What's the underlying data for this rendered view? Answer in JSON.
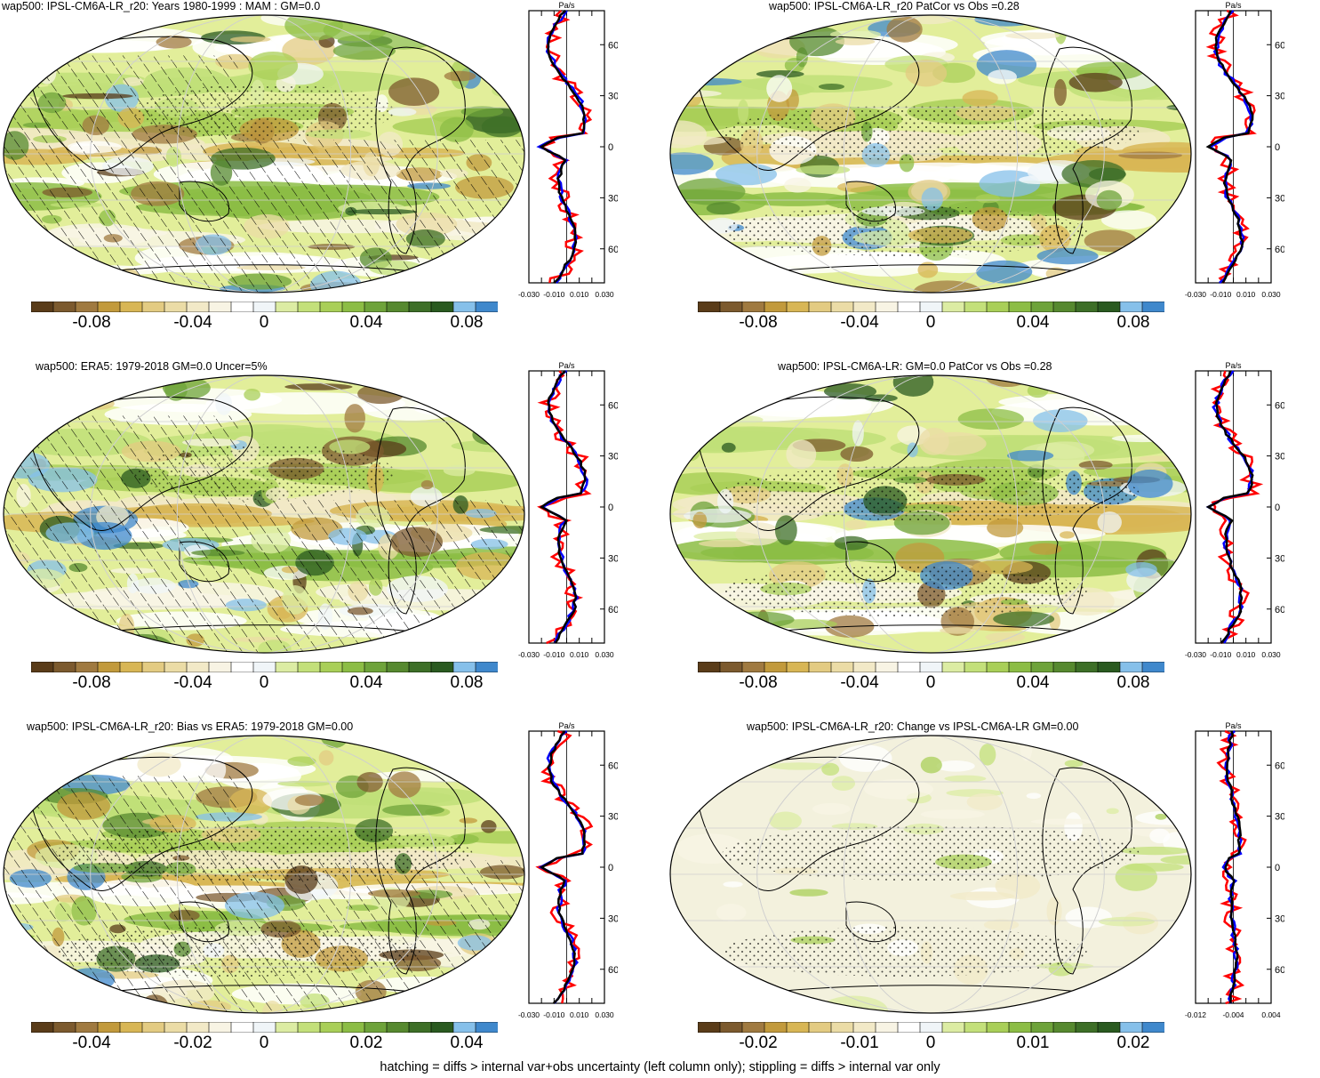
{
  "footer": "hatching = diffs > internal var+obs uncertainty (left column only); stippling = diffs > internal var only",
  "colors": {
    "scale": [
      "#5a3c19",
      "#7c5a2e",
      "#a07a40",
      "#c29a3c",
      "#d8b655",
      "#e3cb82",
      "#ebdca6",
      "#f2e9c7",
      "#f8f4e4",
      "#ffffff",
      "#f0f5f8",
      "#dceca3",
      "#c3e07a",
      "#a9cf58",
      "#8cbd45",
      "#6ea33a",
      "#56892f",
      "#3d6f27",
      "#2a5a20",
      "#86c0ea",
      "#3f88cc"
    ],
    "ocean_base": "#e2ee9a",
    "land_line": "#000000",
    "model_line": "#ff0000",
    "obs_line": "#0000ff",
    "ref_line": "#000000"
  },
  "panels": [
    {
      "title": "wap500: IPSL-CM6A-LR_r20: Years 1980-1999 : MAM : GM=0.0",
      "cbar_ticks": [
        "-0.08",
        "-0.04",
        "0",
        "0.04",
        "0.08"
      ],
      "hatched": true,
      "profile": {
        "unit": "Pa/s",
        "x_ticks": [
          "-0.030",
          "-0.010",
          "0.010",
          "0.030"
        ],
        "lat_ticks": [
          "60N",
          "30N",
          "0",
          "30S",
          "60S"
        ]
      }
    },
    {
      "title": "wap500: IPSL-CM6A-LR_r20 PatCor vs Obs =0.28",
      "cbar_ticks": [
        "-0.08",
        "-0.04",
        "0",
        "0.04",
        "0.08"
      ],
      "hatched": false,
      "profile": {
        "unit": "Pa/s",
        "x_ticks": [
          "-0.030",
          "-0.010",
          "0.010",
          "0.030"
        ],
        "lat_ticks": [
          "60N",
          "30N",
          "0",
          "30S",
          "60S"
        ]
      }
    },
    {
      "title": "wap500: ERA5: 1979-2018 GM=0.0 Uncer=5%",
      "cbar_ticks": [
        "-0.08",
        "-0.04",
        "0",
        "0.04",
        "0.08"
      ],
      "hatched": true,
      "profile": {
        "unit": "Pa/s",
        "x_ticks": [
          "-0.030",
          "-0.010",
          "0.010",
          "0.030"
        ],
        "lat_ticks": [
          "60N",
          "30N",
          "0",
          "30S",
          "60S"
        ]
      }
    },
    {
      "title": "wap500: IPSL-CM6A-LR: GM=0.0 PatCor vs Obs =0.28",
      "cbar_ticks": [
        "-0.08",
        "-0.04",
        "0",
        "0.04",
        "0.08"
      ],
      "hatched": false,
      "profile": {
        "unit": "Pa/s",
        "x_ticks": [
          "-0.030",
          "-0.010",
          "0.010",
          "0.030"
        ],
        "lat_ticks": [
          "60N",
          "30N",
          "0",
          "30S",
          "60S"
        ]
      }
    },
    {
      "title": "wap500: IPSL-CM6A-LR_r20: Bias vs ERA5: 1979-2018 GM=0.00",
      "cbar_ticks": [
        "-0.04",
        "-0.02",
        "0",
        "0.02",
        "0.04"
      ],
      "hatched": true,
      "profile": {
        "unit": "Pa/s",
        "x_ticks": [
          "-0.030",
          "-0.010",
          "0.010",
          "0.030"
        ],
        "lat_ticks": [
          "60N",
          "30N",
          "0",
          "30S",
          "60S"
        ]
      }
    },
    {
      "title": "wap500: IPSL-CM6A-LR_r20: Change vs IPSL-CM6A-LR GM=0.00",
      "cbar_ticks": [
        "-0.02",
        "-0.01",
        "0",
        "0.01",
        "0.02"
      ],
      "hatched": false,
      "profile": {
        "unit": "Pa/s",
        "x_ticks": [
          "-0.012",
          "-0.004",
          "0.004"
        ],
        "lat_ticks": [
          "60N",
          "30N",
          "0",
          "30S",
          "60S"
        ]
      }
    }
  ],
  "chart_data": [
    {
      "type": "heatmap",
      "title": "wap500: IPSL-CM6A-LR_r20: Years 1980-1999 : MAM : GM=0.0",
      "colorbar_ticks": [
        -0.08,
        -0.04,
        0,
        0.04,
        0.08
      ]
    },
    {
      "type": "line",
      "xlabel": "Pa/s",
      "x_ticks": [
        -0.03,
        -0.01,
        0.01,
        0.03
      ],
      "xlim": [
        -0.03,
        0.03
      ],
      "ylim": [
        -80,
        80
      ],
      "y_ticks": [
        60,
        30,
        0,
        -30,
        -60
      ],
      "series": [
        {
          "lat": [
            80,
            70,
            60,
            50,
            40,
            30,
            20,
            10,
            5,
            0,
            -5,
            -10,
            -20,
            -30,
            -40,
            -50,
            -60,
            -70,
            -80
          ],
          "values": [
            0.004,
            0.0,
            0.004,
            -0.006,
            -0.01,
            0.008,
            0.018,
            0.01,
            -0.004,
            -0.022,
            -0.01,
            -0.005,
            0.002,
            0.01,
            0.012,
            0.006,
            -0.004,
            -0.01,
            0.02
          ]
        }
      ]
    },
    {
      "type": "heatmap",
      "title": "wap500: IPSL-CM6A-LR_r20 PatCor vs Obs =0.28",
      "colorbar_ticks": [
        -0.08,
        -0.04,
        0,
        0.04,
        0.08
      ]
    },
    {
      "type": "heatmap",
      "title": "wap500: ERA5: 1979-2018 GM=0.0 Uncer=5%",
      "colorbar_ticks": [
        -0.08,
        -0.04,
        0,
        0.04,
        0.08
      ]
    },
    {
      "type": "heatmap",
      "title": "wap500: IPSL-CM6A-LR: GM=0.0 PatCor vs Obs =0.28",
      "colorbar_ticks": [
        -0.08,
        -0.04,
        0,
        0.04,
        0.08
      ]
    },
    {
      "type": "heatmap",
      "title": "wap500: IPSL-CM6A-LR_r20: Bias vs ERA5: 1979-2018 GM=0.00",
      "colorbar_ticks": [
        -0.04,
        -0.02,
        0,
        0.02,
        0.04
      ]
    },
    {
      "type": "heatmap",
      "title": "wap500: IPSL-CM6A-LR_r20: Change vs IPSL-CM6A-LR GM=0.00",
      "colorbar_ticks": [
        -0.02,
        -0.01,
        0,
        0.01,
        0.02
      ]
    }
  ]
}
